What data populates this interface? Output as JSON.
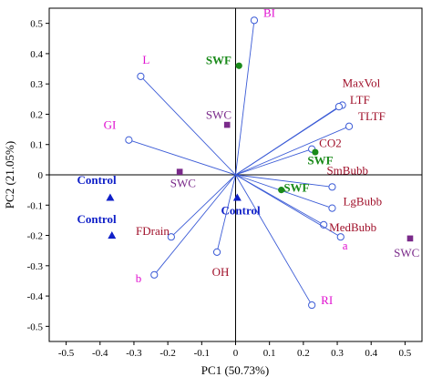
{
  "chart_data": {
    "type": "scatter",
    "title": "",
    "xlabel": "PC1 (50.73%)",
    "ylabel": "PC2 (21.05%)",
    "xlim": [
      -0.55,
      0.55
    ],
    "ylim": [
      -0.55,
      0.55
    ],
    "xticks": [
      "-0.5",
      "-0.4",
      "-0.3",
      "-0.2",
      "-0.1",
      "0",
      "0.1",
      "0.2",
      "0.3",
      "0.4",
      "0.5"
    ],
    "yticks": [
      "0.5",
      "0.4",
      "0.3",
      "0.2",
      "0.1",
      "0",
      "-0.1",
      "-0.2",
      "-0.3",
      "-0.4",
      "-0.5"
    ],
    "grid": false,
    "colors": {
      "loading": "#3b5bd6",
      "label_magenta": "#e010d0",
      "label_darkred": "#a0102a",
      "swf": "#1a8a1a",
      "swc": "#7a2a8a",
      "control": "#1020c8"
    },
    "loadings": [
      {
        "label": "BI",
        "x": 0.055,
        "y": 0.51,
        "color": "magenta"
      },
      {
        "label": "L",
        "x": -0.28,
        "y": 0.325,
        "color": "magenta"
      },
      {
        "label": "GI",
        "x": -0.315,
        "y": 0.115,
        "color": "magenta"
      },
      {
        "label": "MaxVol",
        "x": 0.315,
        "y": 0.23,
        "color": "darkred"
      },
      {
        "label": "LTF",
        "x": 0.305,
        "y": 0.225,
        "color": "darkred"
      },
      {
        "label": "TLTF",
        "x": 0.335,
        "y": 0.16,
        "color": "darkred"
      },
      {
        "label": "CO2",
        "x": 0.225,
        "y": 0.085,
        "color": "darkred"
      },
      {
        "label": "SmBubb",
        "x": 0.285,
        "y": -0.04,
        "color": "darkred"
      },
      {
        "label": "LgBubb",
        "x": 0.285,
        "y": -0.11,
        "color": "darkred"
      },
      {
        "label": "MedBubb",
        "x": 0.26,
        "y": -0.165,
        "color": "darkred"
      },
      {
        "label": "a",
        "x": 0.31,
        "y": -0.205,
        "color": "magenta"
      },
      {
        "label": "RI",
        "x": 0.225,
        "y": -0.43,
        "color": "magenta"
      },
      {
        "label": "OH",
        "x": -0.055,
        "y": -0.255,
        "color": "darkred"
      },
      {
        "label": "b",
        "x": -0.24,
        "y": -0.33,
        "color": "magenta"
      },
      {
        "label": "FDrain",
        "x": -0.19,
        "y": -0.205,
        "color": "darkred"
      }
    ],
    "scores": [
      {
        "group": "SWF",
        "marker": "circle",
        "x": 0.01,
        "y": 0.36
      },
      {
        "group": "SWF",
        "marker": "circle",
        "x": 0.235,
        "y": 0.075
      },
      {
        "group": "SWF",
        "marker": "circle",
        "x": 0.135,
        "y": -0.05
      },
      {
        "group": "SWC",
        "marker": "square",
        "x": -0.025,
        "y": 0.165
      },
      {
        "group": "SWC",
        "marker": "square",
        "x": -0.165,
        "y": 0.01
      },
      {
        "group": "SWC",
        "marker": "square",
        "x": 0.515,
        "y": -0.21
      },
      {
        "group": "Control",
        "marker": "triangle",
        "x": -0.37,
        "y": -0.075
      },
      {
        "group": "Control",
        "marker": "triangle",
        "x": -0.365,
        "y": -0.2
      },
      {
        "group": "Control",
        "marker": "triangle",
        "x": 0.005,
        "y": -0.075
      }
    ],
    "score_labels": [
      {
        "text": "SWF",
        "x": -0.05,
        "y": 0.365,
        "color": "swf"
      },
      {
        "text": "SWF",
        "x": 0.25,
        "y": 0.035,
        "color": "swf"
      },
      {
        "text": "SWF",
        "x": 0.18,
        "y": -0.055,
        "color": "swf"
      },
      {
        "text": "SWC",
        "x": -0.05,
        "y": 0.185,
        "color": "swc"
      },
      {
        "text": "SWC",
        "x": -0.155,
        "y": -0.04,
        "color": "swc"
      },
      {
        "text": "SWC",
        "x": 0.505,
        "y": -0.27,
        "color": "swc"
      },
      {
        "text": "Control",
        "x": -0.41,
        "y": -0.03,
        "color": "control"
      },
      {
        "text": "Control",
        "x": -0.41,
        "y": -0.16,
        "color": "control"
      },
      {
        "text": "Control",
        "x": 0.015,
        "y": -0.13,
        "color": "control"
      }
    ]
  }
}
